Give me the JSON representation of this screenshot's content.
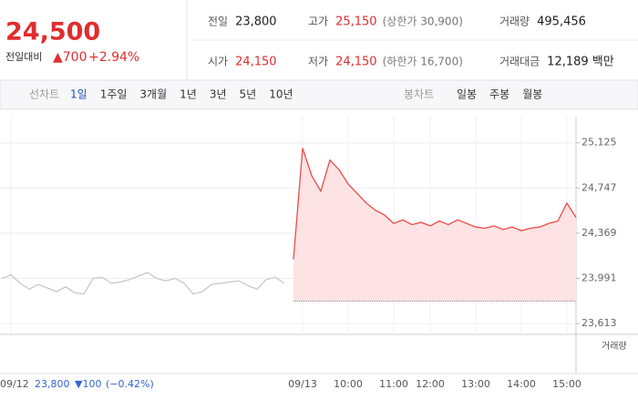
{
  "header": {
    "price": "24,500",
    "change_label": "전일대비",
    "change": "▲700",
    "change_pct": "+2.94%",
    "stats": [
      [
        "전일",
        "23,800",
        ""
      ],
      [
        "고가",
        "25,150",
        "(상한가 30,900)"
      ],
      [
        "거래량",
        "495,456",
        ""
      ],
      [
        "시가",
        "24,150",
        ""
      ],
      [
        "저가",
        "24,150",
        "(하한가 16,700)"
      ],
      [
        "거래대금",
        "12,189 백만",
        ""
      ]
    ]
  },
  "tabs": {
    "line_label": "선차트",
    "line": [
      "1일",
      "1주일",
      "3개월",
      "1년",
      "3년",
      "5년",
      "10년"
    ],
    "candle_label": "봉차트",
    "candle": [
      "일봉",
      "주봉",
      "월봉"
    ]
  },
  "footer": {
    "prev_close": "23,800",
    "prev_change": "▼100",
    "prev_pct": "(−0.42%)"
  },
  "chart_data": {
    "type": "line",
    "volume_label": "거래량",
    "categories": [
      null,
      "09/12",
      null,
      null,
      null,
      null,
      null,
      null,
      null,
      null,
      null,
      null,
      null,
      null,
      null,
      null,
      null,
      null,
      null,
      null,
      null,
      null,
      null,
      null,
      null,
      null,
      null,
      null,
      null,
      null,
      null,
      null,
      null,
      "09/13",
      null,
      null,
      null,
      null,
      "10:00",
      null,
      null,
      null,
      null,
      "11:00",
      null,
      null,
      null,
      "12:00",
      null,
      null,
      null,
      null,
      "13:00",
      null,
      null,
      null,
      null,
      "14:00",
      null,
      null,
      null,
      null,
      "15:00",
      null
    ],
    "series": [
      {
        "color": "#c8c8c8",
        "values": [
          23990,
          24020,
          23950,
          23900,
          23940,
          23910,
          23880,
          23920,
          23870,
          23860,
          23990,
          24000,
          23950,
          23960,
          23980,
          24010,
          24040,
          23990,
          23970,
          23990,
          23950,
          23860,
          23880,
          23940,
          23950,
          23960,
          23970,
          23930,
          23900,
          23980,
          24000,
          23950,
          null,
          null,
          null,
          null,
          null,
          null,
          null,
          null,
          null,
          null,
          null,
          null,
          null,
          null,
          null,
          null,
          null,
          null,
          null,
          null,
          null,
          null,
          null,
          null,
          null,
          null,
          null,
          null,
          null,
          null,
          null,
          null
        ]
      },
      {
        "color": "#ef4a4a",
        "fill": "#fde3e3",
        "values": [
          null,
          null,
          null,
          null,
          null,
          null,
          null,
          null,
          null,
          null,
          null,
          null,
          null,
          null,
          null,
          null,
          null,
          null,
          null,
          null,
          null,
          null,
          null,
          null,
          null,
          null,
          null,
          null,
          null,
          null,
          null,
          null,
          24150,
          25080,
          24850,
          24720,
          24980,
          24900,
          24780,
          24700,
          24620,
          24560,
          24520,
          24450,
          24480,
          24440,
          24460,
          24430,
          24470,
          24440,
          24480,
          24450,
          24420,
          24410,
          24430,
          24400,
          24420,
          24390,
          24410,
          24420,
          24450,
          24470,
          24620,
          24500
        ]
      }
    ],
    "baseline": 23800,
    "ylim": [
      23522,
      25344
    ],
    "yticks": [
      {
        "value": 23613,
        "label": "23,613"
      },
      {
        "value": 23991,
        "label": "23,991"
      },
      {
        "value": 24369,
        "label": "24,369"
      },
      {
        "value": 24747,
        "label": "24,747"
      },
      {
        "value": 25125,
        "label": "25,125"
      }
    ],
    "grid": true
  }
}
